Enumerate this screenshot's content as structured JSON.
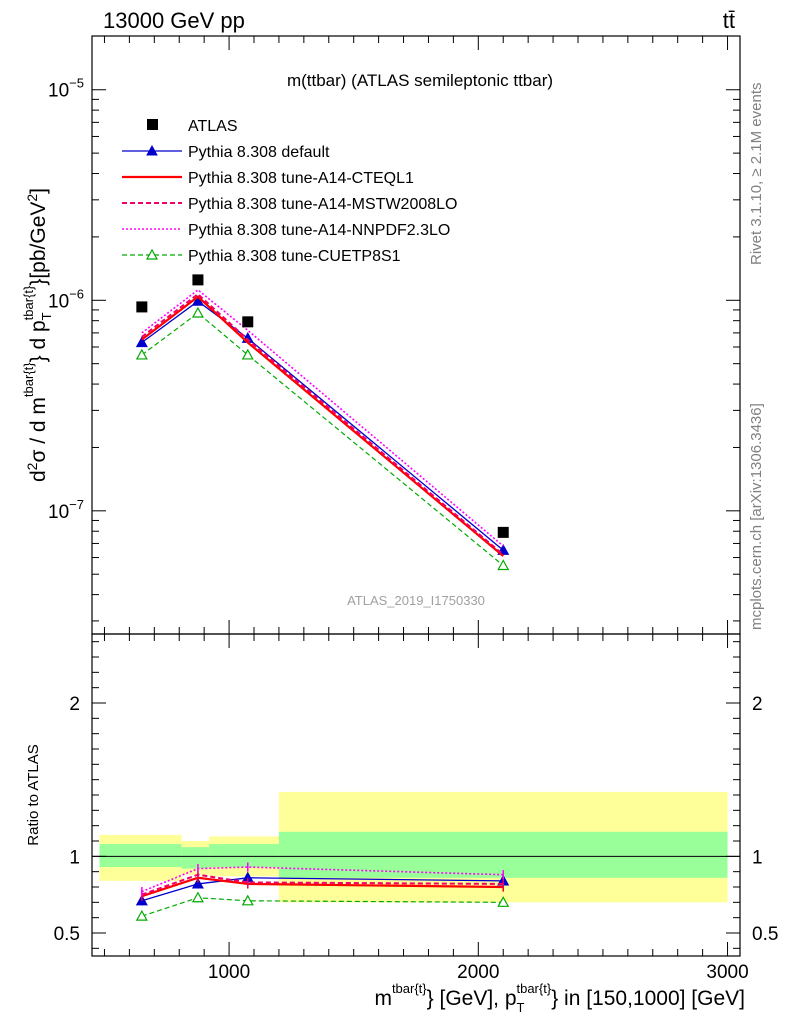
{
  "header": {
    "left": "13000 GeV pp",
    "right": "tt̄"
  },
  "side": {
    "rivet": "Rivet 3.1.10, ≥ 2.1M events",
    "mcplots": "mcplots.cern.ch [arXiv:1306.3436]"
  },
  "colors": {
    "data": "#000000",
    "band_inner": "#99ff99",
    "band_outer": "#ffff99"
  },
  "chart_data": [
    {
      "type": "line",
      "title": "m(ttbar) (ATLAS semileptonic ttbar)",
      "analysis": "ATLAS_2019_I1750330",
      "ylabel": "d²σ / d m^{tbar{t}} d p_T^{tbar{t}}[pb/GeV²]",
      "yscale": "log",
      "xlim": [
        450,
        3050
      ],
      "ylim": [
        2.6e-08,
        1.8e-05
      ],
      "yticks": [
        {
          "value": 1e-07,
          "base": "10",
          "exp": "−7"
        },
        {
          "value": 1e-06,
          "base": "10",
          "exp": "−6"
        },
        {
          "value": 1e-05,
          "base": "10",
          "exp": "−5"
        }
      ],
      "x": [
        650,
        875,
        1075,
        2100
      ],
      "data": {
        "name": "ATLAS",
        "values": [
          9.3e-07,
          1.25e-06,
          7.9e-07,
          7.9e-08
        ]
      },
      "series": [
        {
          "name": "Pythia 8.308 default",
          "color": "#0000cc",
          "dash": "",
          "width": 1.3,
          "marker": "triangle-filled",
          "values": [
            6.3e-07,
            9.9e-07,
            6.6e-07,
            6.5e-08
          ]
        },
        {
          "name": "Pythia 8.308 tune-A14-CTEQL1",
          "color": "#ff0000",
          "dash": "",
          "width": 2.2,
          "marker": "none",
          "values": [
            6.5e-07,
            1.04e-06,
            6.3e-07,
            6.1e-08
          ]
        },
        {
          "name": "Pythia 8.308 tune-A14-MSTW2008LO",
          "color": "#ee0066",
          "dash": "5,3",
          "width": 2.0,
          "marker": "none",
          "values": [
            6.7e-07,
            1.07e-06,
            6.5e-07,
            6.2e-08
          ]
        },
        {
          "name": "Pythia 8.308 tune-A14-NNPDF2.3LO",
          "color": "#ff00ff",
          "dash": "2,2",
          "width": 1.6,
          "marker": "none",
          "values": [
            7e-07,
            1.12e-06,
            7.2e-07,
            6.8e-08
          ]
        },
        {
          "name": "Pythia 8.308 tune-CUETP8S1",
          "color": "#00aa00",
          "dash": "5,3",
          "width": 1.2,
          "marker": "triangle-open",
          "values": [
            5.5e-07,
            8.7e-07,
            5.5e-07,
            5.5e-08
          ]
        }
      ]
    },
    {
      "type": "line",
      "ylabel": "Ratio to ATLAS",
      "xlabel": "m^{tbar{t}} [GeV], p_T^{tbar{t}} in [150,1000] [GeV]",
      "xlim": [
        450,
        3050
      ],
      "ylim": [
        0.35,
        2.45
      ],
      "xticks": [
        1000,
        2000,
        3000
      ],
      "yticks": [
        0.5,
        1,
        2
      ],
      "bins": [
        {
          "lo": 480,
          "hi": 810,
          "inner": [
            0.93,
            1.08
          ],
          "outer": [
            0.84,
            1.14
          ]
        },
        {
          "lo": 810,
          "hi": 920,
          "inner": [
            0.92,
            1.06
          ],
          "outer": [
            0.88,
            1.1
          ]
        },
        {
          "lo": 920,
          "hi": 1200,
          "inner": [
            0.93,
            1.08
          ],
          "outer": [
            0.87,
            1.13
          ]
        },
        {
          "lo": 1200,
          "hi": 3000,
          "inner": [
            0.86,
            1.16
          ],
          "outer": [
            0.7,
            1.42
          ]
        }
      ],
      "x": [
        650,
        875,
        1075,
        2100
      ],
      "series": [
        {
          "name": "Pythia 8.308 default",
          "values": [
            0.71,
            0.82,
            0.86,
            0.84
          ],
          "err": [
            0.03,
            0.03,
            0.03,
            0.03
          ]
        },
        {
          "name": "Pythia 8.308 tune-A14-CTEQL1",
          "values": [
            0.74,
            0.86,
            0.82,
            0.8
          ],
          "err": [
            0.03,
            0.03,
            0.03,
            0.03
          ]
        },
        {
          "name": "Pythia 8.308 tune-A14-MSTW2008LO",
          "values": [
            0.75,
            0.88,
            0.83,
            0.82
          ],
          "err": [
            0.03,
            0.03,
            0.03,
            0.03
          ]
        },
        {
          "name": "Pythia 8.308 tune-A14-NNPDF2.3LO",
          "values": [
            0.77,
            0.92,
            0.93,
            0.88
          ],
          "err": [
            0.03,
            0.03,
            0.03,
            0.03
          ]
        },
        {
          "name": "Pythia 8.308 tune-CUETP8S1",
          "values": [
            0.61,
            0.73,
            0.71,
            0.7
          ],
          "err": [
            0.02,
            0.03,
            0.03,
            0.03
          ]
        }
      ]
    }
  ]
}
